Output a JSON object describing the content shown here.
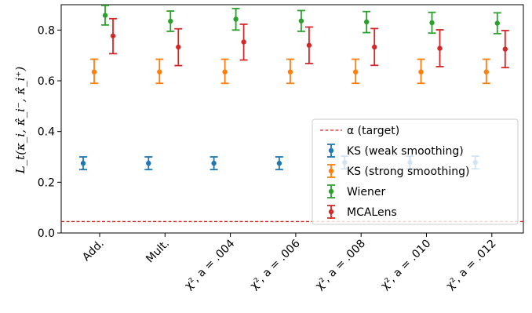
{
  "chart_data": {
    "type": "scatter",
    "categories": [
      "Add.",
      "Mult.",
      "χ², a = .004",
      "χ², a = .006",
      "χ², a = .008",
      "χ², a = .010",
      "χ², a = .012"
    ],
    "ylabel": "L_t(κ_i, κ̂_i⁻, κ̂_i⁺)",
    "ylim": [
      0.0,
      0.9
    ],
    "yticks": [
      "0.0",
      "0.2",
      "0.4",
      "0.6",
      "0.8"
    ],
    "legend_position": "lower-right",
    "reference_line": {
      "name": "α (target)",
      "value": 0.045,
      "style": "dashed",
      "color": "#d62728"
    },
    "series": [
      {
        "name": "KS (weak smoothing)",
        "color": "#1f77b4",
        "values": [
          0.275,
          0.275,
          0.275,
          0.275,
          0.278,
          0.278,
          0.278
        ],
        "err_low": [
          0.25,
          0.25,
          0.25,
          0.25,
          0.253,
          0.253,
          0.253
        ],
        "err_high": [
          0.3,
          0.3,
          0.3,
          0.3,
          0.303,
          0.303,
          0.303
        ]
      },
      {
        "name": "KS (strong smoothing)",
        "color": "#ff7f0e",
        "values": [
          0.635,
          0.635,
          0.635,
          0.635,
          0.635,
          0.635,
          0.635
        ],
        "err_low": [
          0.59,
          0.59,
          0.59,
          0.59,
          0.59,
          0.59,
          0.59
        ],
        "err_high": [
          0.685,
          0.685,
          0.685,
          0.685,
          0.685,
          0.685,
          0.685
        ]
      },
      {
        "name": "Wiener",
        "color": "#2ca02c",
        "values": [
          0.858,
          0.835,
          0.843,
          0.836,
          0.832,
          0.829,
          0.827
        ],
        "err_low": [
          0.82,
          0.795,
          0.8,
          0.795,
          0.79,
          0.788,
          0.786
        ],
        "err_high": [
          0.897,
          0.875,
          0.885,
          0.877,
          0.873,
          0.87,
          0.868
        ]
      },
      {
        "name": "MCALens",
        "color": "#d62728",
        "values": [
          0.777,
          0.733,
          0.753,
          0.74,
          0.733,
          0.728,
          0.725
        ],
        "err_low": [
          0.707,
          0.66,
          0.682,
          0.668,
          0.661,
          0.656,
          0.652
        ],
        "err_high": [
          0.845,
          0.805,
          0.823,
          0.812,
          0.806,
          0.801,
          0.798
        ]
      }
    ]
  }
}
